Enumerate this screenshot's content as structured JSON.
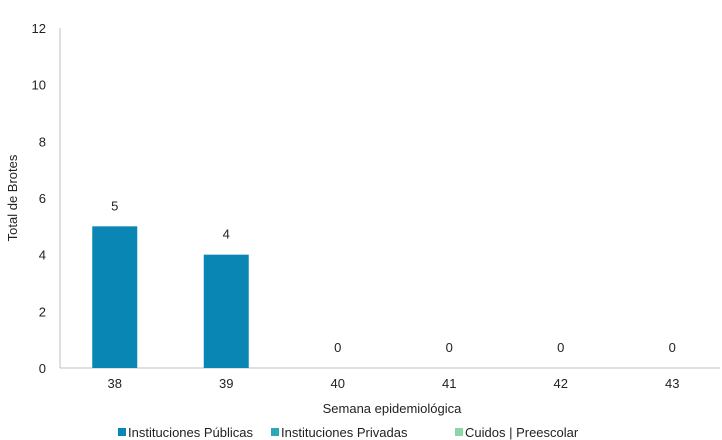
{
  "chart_data": {
    "type": "bar",
    "title": "",
    "xlabel": "Semana epidemiológica",
    "ylabel": "Total de Brotes",
    "categories": [
      "38",
      "39",
      "40",
      "41",
      "42",
      "43"
    ],
    "ylim": [
      0,
      12
    ],
    "yticks": [
      0,
      2,
      4,
      6,
      8,
      10,
      12
    ],
    "grid": false,
    "legend_position": "bottom",
    "series": [
      {
        "name": "Instituciones Públicas",
        "color": "#0a86b4",
        "values": [
          5,
          4,
          0,
          0,
          0,
          0
        ]
      },
      {
        "name": "Instituciones Privadas",
        "color": "#2aa7b8",
        "values": [
          0,
          0,
          0,
          0,
          0,
          0
        ]
      },
      {
        "name": "Cuidos | Preescolar",
        "color": "#8fd3a6",
        "values": [
          0,
          0,
          0,
          0,
          0,
          0
        ]
      }
    ],
    "data_labels": [
      "5",
      "4",
      "0",
      "0",
      "0",
      "0"
    ]
  }
}
